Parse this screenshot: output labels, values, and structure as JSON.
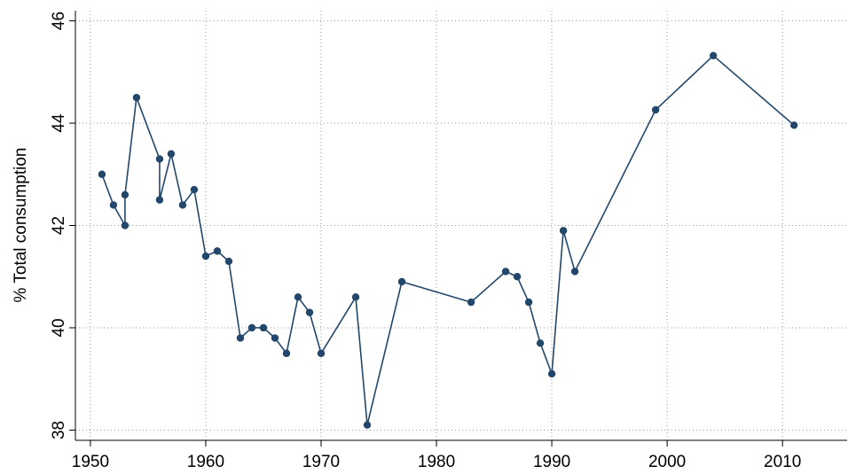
{
  "chart_data": {
    "type": "line",
    "y_label": "% Total consumption",
    "x": [
      1951,
      1952,
      1953,
      1953,
      1954,
      1956,
      1956,
      1957,
      1958,
      1959,
      1960,
      1961,
      1962,
      1963,
      1964,
      1965,
      1966,
      1967,
      1968,
      1969,
      1970,
      1973,
      1974,
      1977,
      1983,
      1986,
      1987,
      1988,
      1989,
      1990,
      1991,
      1992,
      1999,
      2004,
      2011
    ],
    "values": [
      43.0,
      42.4,
      42.0,
      42.6,
      44.5,
      43.3,
      42.5,
      43.4,
      42.4,
      42.7,
      41.4,
      41.5,
      41.3,
      39.8,
      40.0,
      40.0,
      39.8,
      39.5,
      40.6,
      40.3,
      39.5,
      40.6,
      38.1,
      40.9,
      40.5,
      41.1,
      41.0,
      40.5,
      39.7,
      39.1,
      41.9,
      41.1,
      44.26,
      45.32,
      43.96
    ],
    "color": "#22476b",
    "xlim": [
      1948.7,
      2015.6
    ],
    "ylim": [
      37.8,
      46.2
    ],
    "xticks": [
      1950,
      1960,
      1970,
      1980,
      1990,
      2000,
      2010
    ],
    "yticks": [
      38,
      40,
      42,
      44,
      46
    ],
    "grid": true
  }
}
